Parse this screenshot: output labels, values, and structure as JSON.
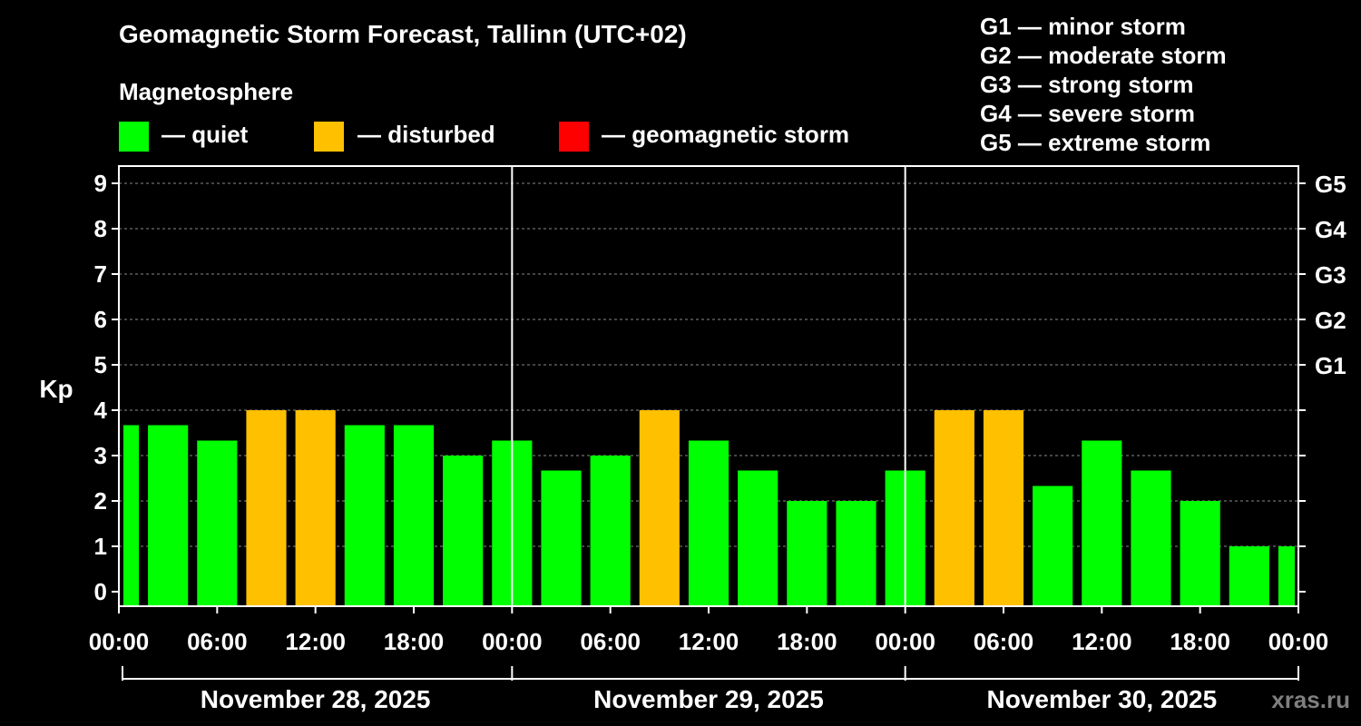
{
  "title": "Geomagnetic Storm Forecast, Tallinn (UTC+02)",
  "legend": {
    "heading": "Magnetosphere",
    "items": [
      {
        "label": "— quiet",
        "color": "#00ff00"
      },
      {
        "label": "— disturbed",
        "color": "#ffc000"
      },
      {
        "label": "— geomagnetic storm",
        "color": "#ff0000"
      }
    ]
  },
  "g_scale_legend": [
    "G1 — minor storm",
    "G2 — moderate storm",
    "G3 — strong storm",
    "G4 — severe storm",
    "G5 — extreme storm"
  ],
  "watermark": "xras.ru",
  "chart_data": {
    "type": "bar",
    "ylabel": "Kp",
    "ylim": [
      0,
      9
    ],
    "yticks": [
      0,
      1,
      2,
      3,
      4,
      5,
      6,
      7,
      8,
      9
    ],
    "right_axis_labels": [
      {
        "kp": 5,
        "label": "G1"
      },
      {
        "kp": 6,
        "label": "G2"
      },
      {
        "kp": 7,
        "label": "G3"
      },
      {
        "kp": 8,
        "label": "G4"
      },
      {
        "kp": 9,
        "label": "G5"
      }
    ],
    "xticks": [
      "00:00",
      "06:00",
      "12:00",
      "18:00",
      "00:00",
      "06:00",
      "12:00",
      "18:00",
      "00:00",
      "06:00",
      "12:00",
      "18:00",
      "00:00"
    ],
    "days": [
      "November 28, 2025",
      "November 29, 2025",
      "November 30, 2025"
    ],
    "grid": "horizontal dashed",
    "values": [
      3.67,
      3.67,
      3.33,
      4.0,
      4.0,
      3.67,
      3.67,
      3.0,
      3.33,
      2.67,
      3.0,
      4.0,
      3.33,
      2.67,
      2.0,
      2.0,
      2.67,
      4.0,
      4.0,
      2.33,
      3.33,
      2.67,
      2.0,
      1.0,
      1.0
    ],
    "colors": [
      "quiet",
      "quiet",
      "quiet",
      "disturbed",
      "disturbed",
      "quiet",
      "quiet",
      "quiet",
      "quiet",
      "quiet",
      "quiet",
      "disturbed",
      "quiet",
      "quiet",
      "quiet",
      "quiet",
      "quiet",
      "disturbed",
      "disturbed",
      "quiet",
      "quiet",
      "quiet",
      "quiet",
      "quiet",
      "quiet"
    ]
  }
}
